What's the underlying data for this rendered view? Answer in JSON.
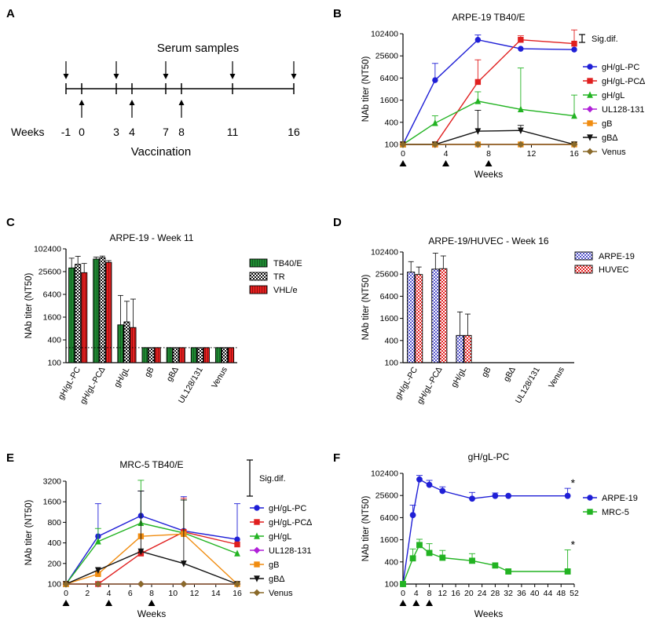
{
  "colors": {
    "gHgLPC": "#1f1fd6",
    "gHgLPCd": "#e01f1f",
    "gHgL": "#22b322",
    "UL128": "#b020d8",
    "gB": "#f08c10",
    "gBd": "#111111",
    "Venus": "#8a6a2a",
    "green_bar": "#1f8a32",
    "red_bar": "#e52020",
    "blue_bar": "#5555cc"
  },
  "panel_A": {
    "letter": "A",
    "serum_label": "Serum samples",
    "vaccination_label": "Vaccination",
    "weeks_label": "Weeks",
    "weeks": [
      "-1",
      "0",
      "3",
      "4",
      "7",
      "8",
      "11",
      "16"
    ],
    "serum_weeks": [
      -1,
      3,
      7,
      11,
      16
    ],
    "vaccination_weeks": [
      0,
      4,
      8
    ]
  },
  "panel_B": {
    "letter": "B"
  },
  "panel_C": {
    "letter": "C"
  },
  "panel_D": {
    "letter": "D"
  },
  "panel_E": {
    "letter": "E"
  },
  "panel_F": {
    "letter": "F"
  },
  "chart_data": [
    {
      "id": "B",
      "type": "line",
      "title": "ARPE-19 TB40/E",
      "xlabel": "Weeks",
      "ylabel": "NAb titer (NT50)",
      "y_scale": "log",
      "ylim": [
        100,
        102400
      ],
      "yticks": [
        "100",
        "400",
        "1600",
        "6400",
        "25600",
        "102400"
      ],
      "xlim": [
        0,
        16
      ],
      "xticks": [
        "0",
        "4",
        "8",
        "12",
        "16"
      ],
      "legend_position": "right",
      "sig_label": "Sig.dif.",
      "x": [
        0,
        3,
        7,
        11,
        16
      ],
      "series": [
        {
          "name": "gH/gL-PC",
          "color": "#1f1fd6",
          "marker": "circle",
          "values": [
            100,
            5600,
            70000,
            40000,
            38000
          ],
          "errors": [
            null,
            16000,
            95000,
            null,
            null
          ]
        },
        {
          "name": "gH/gL-PC∆",
          "color": "#e01f1f",
          "marker": "square",
          "values": [
            100,
            100,
            5000,
            70000,
            55000
          ],
          "errors": [
            null,
            null,
            20000,
            90000,
            130000
          ]
        },
        {
          "name": "gH/gL",
          "color": "#22b322",
          "marker": "triangle",
          "values": [
            100,
            380,
            1500,
            900,
            600
          ],
          "errors": [
            null,
            600,
            2700,
            12000,
            2200
          ]
        },
        {
          "name": "UL128-131",
          "color": "#b020d8",
          "marker": "diamond",
          "values": [
            100,
            100,
            100,
            100,
            100
          ],
          "errors": [
            null,
            null,
            null,
            null,
            null
          ]
        },
        {
          "name": "gB",
          "color": "#f08c10",
          "marker": "square",
          "values": [
            100,
            100,
            100,
            100,
            100
          ],
          "errors": [
            null,
            null,
            null,
            null,
            null
          ]
        },
        {
          "name": "gB∆",
          "color": "#111111",
          "marker": "triangle-down",
          "values": [
            100,
            100,
            230,
            240,
            100
          ],
          "errors": [
            null,
            null,
            850,
            330,
            null
          ]
        },
        {
          "name": "Venus",
          "color": "#8a6a2a",
          "marker": "diamond",
          "values": [
            100,
            100,
            100,
            100,
            100
          ],
          "errors": [
            null,
            null,
            null,
            null,
            null
          ]
        }
      ],
      "vaccination_weeks": [
        0,
        4,
        8
      ]
    },
    {
      "id": "C",
      "type": "bar",
      "title": "ARPE-19 - Week 11",
      "ylabel": "NAb titer (NT50)",
      "y_scale": "log",
      "ylim": [
        100,
        102400
      ],
      "yticks": [
        "100",
        "400",
        "1600",
        "6400",
        "25600",
        "102400"
      ],
      "threshold": 250,
      "categories": [
        "gH/gL-PC",
        "gH/gL-PC∆",
        "gH/gL",
        "gB",
        "gB∆",
        "UL128/131",
        "Venus"
      ],
      "legend_position": "right",
      "series": [
        {
          "name": "TB40/E",
          "pattern": "green",
          "values": [
            32000,
            55000,
            1000,
            250,
            250,
            250,
            250
          ],
          "errors": [
            58000,
            62000,
            6000,
            null,
            null,
            null,
            null
          ]
        },
        {
          "name": "TR",
          "pattern": "checker",
          "values": [
            40000,
            60000,
            1200,
            250,
            250,
            250,
            250
          ],
          "errors": [
            65000,
            66000,
            4200,
            null,
            null,
            null,
            null
          ]
        },
        {
          "name": "VHL/e",
          "pattern": "red",
          "values": [
            24000,
            45000,
            850,
            250,
            250,
            250,
            250
          ],
          "errors": [
            42000,
            50000,
            4800,
            null,
            null,
            null,
            null
          ]
        }
      ]
    },
    {
      "id": "D",
      "type": "bar",
      "title": "ARPE-19/HUVEC - Week 16",
      "ylabel": "NAb titer (NT50)",
      "y_scale": "log",
      "ylim": [
        100,
        102400
      ],
      "yticks": [
        "100",
        "400",
        "1600",
        "6400",
        "25600",
        "102400"
      ],
      "threshold": 100,
      "categories": [
        "gH/gL-PC",
        "gH/gL-PC∆",
        "gH/gL",
        "gB",
        "gB∆",
        "UL128/131",
        "Venus"
      ],
      "legend_position": "right",
      "series": [
        {
          "name": "ARPE-19",
          "pattern": "blue",
          "values": [
            29000,
            35000,
            550,
            100,
            100,
            100,
            100
          ],
          "errors": [
            56000,
            95000,
            2400,
            null,
            null,
            null,
            null
          ]
        },
        {
          "name": "HUVEC",
          "pattern": "redcheck",
          "values": [
            25000,
            36000,
            550,
            100,
            100,
            100,
            100
          ],
          "errors": [
            40000,
            80000,
            2100,
            null,
            null,
            null,
            null
          ]
        }
      ]
    },
    {
      "id": "E",
      "type": "line",
      "title": "MRC-5 TB40/E",
      "xlabel": "Weeks",
      "ylabel": "NAb titer (NT50)",
      "y_scale": "log",
      "ylim": [
        100,
        3200
      ],
      "yticks": [
        "100",
        "200",
        "400",
        "800",
        "1600",
        "3200"
      ],
      "xlim": [
        0,
        16
      ],
      "xticks": [
        "0",
        "2",
        "4",
        "6",
        "8",
        "10",
        "12",
        "14",
        "16"
      ],
      "legend_position": "right",
      "sig_label": "Sig.dif.",
      "x": [
        0,
        3,
        7,
        11,
        16
      ],
      "series": [
        {
          "name": "gH/gL-PC",
          "color": "#1f1fd6",
          "marker": "circle",
          "values": [
            100,
            500,
            1000,
            600,
            450
          ],
          "errors": [
            null,
            1500,
            2300,
            1900,
            1500
          ]
        },
        {
          "name": "gH/gL-PC∆",
          "color": "#e01f1f",
          "marker": "square",
          "values": [
            100,
            100,
            280,
            580,
            380
          ],
          "errors": [
            null,
            null,
            null,
            1800,
            null
          ]
        },
        {
          "name": "gH/gL",
          "color": "#22b322",
          "marker": "triangle",
          "values": [
            100,
            420,
            780,
            560,
            280
          ],
          "errors": [
            null,
            650,
            3300,
            1700,
            null
          ]
        },
        {
          "name": "UL128-131",
          "color": "#b020d8",
          "marker": "diamond",
          "values": [
            100,
            100,
            100,
            100,
            100
          ],
          "errors": [
            null,
            null,
            null,
            null,
            null
          ]
        },
        {
          "name": "gB",
          "color": "#f08c10",
          "marker": "square",
          "values": [
            100,
            140,
            500,
            540,
            100
          ],
          "errors": [
            null,
            null,
            null,
            null,
            null
          ]
        },
        {
          "name": "gB∆",
          "color": "#111111",
          "marker": "triangle-down",
          "values": [
            100,
            160,
            300,
            200,
            100
          ],
          "errors": [
            null,
            null,
            2300,
            1700,
            null
          ]
        },
        {
          "name": "Venus",
          "color": "#8a6a2a",
          "marker": "diamond",
          "values": [
            100,
            100,
            100,
            100,
            100
          ],
          "errors": [
            null,
            null,
            null,
            null,
            null
          ]
        }
      ],
      "vaccination_weeks": [
        0,
        4,
        8
      ]
    },
    {
      "id": "F",
      "type": "line",
      "title": "gH/gL-PC",
      "xlabel": "Weeks",
      "ylabel": "NAb titer (NT50)",
      "y_scale": "log",
      "ylim": [
        100,
        102400
      ],
      "yticks": [
        "100",
        "400",
        "1600",
        "6400",
        "25600",
        "102400"
      ],
      "xlim": [
        0,
        52
      ],
      "xticks": [
        "0",
        "4",
        "8",
        "12",
        "16",
        "20",
        "24",
        "28",
        "32",
        "36",
        "40",
        "44",
        "48",
        "52"
      ],
      "threshold": 100,
      "legend_position": "right",
      "star": "*",
      "series": [
        {
          "name": "ARPE-19",
          "color": "#1f1fd6",
          "marker": "circle",
          "x": [
            0,
            3,
            5,
            8,
            12,
            21,
            28,
            32,
            50
          ],
          "values": [
            100,
            7500,
            70000,
            50000,
            34000,
            21000,
            25000,
            25000,
            25000
          ],
          "errors": [
            null,
            14000,
            90000,
            66000,
            44000,
            31000,
            30000,
            null,
            40000
          ]
        },
        {
          "name": "MRC-5",
          "color": "#22b322",
          "marker": "square",
          "x": [
            0,
            3,
            5,
            8,
            12,
            21,
            28,
            32,
            50
          ],
          "values": [
            100,
            500,
            1150,
            700,
            520,
            430,
            320,
            220,
            220
          ],
          "errors": [
            null,
            900,
            1650,
            1250,
            820,
            670,
            null,
            null,
            850
          ]
        }
      ],
      "vaccination_weeks": [
        0,
        4,
        8
      ]
    }
  ]
}
